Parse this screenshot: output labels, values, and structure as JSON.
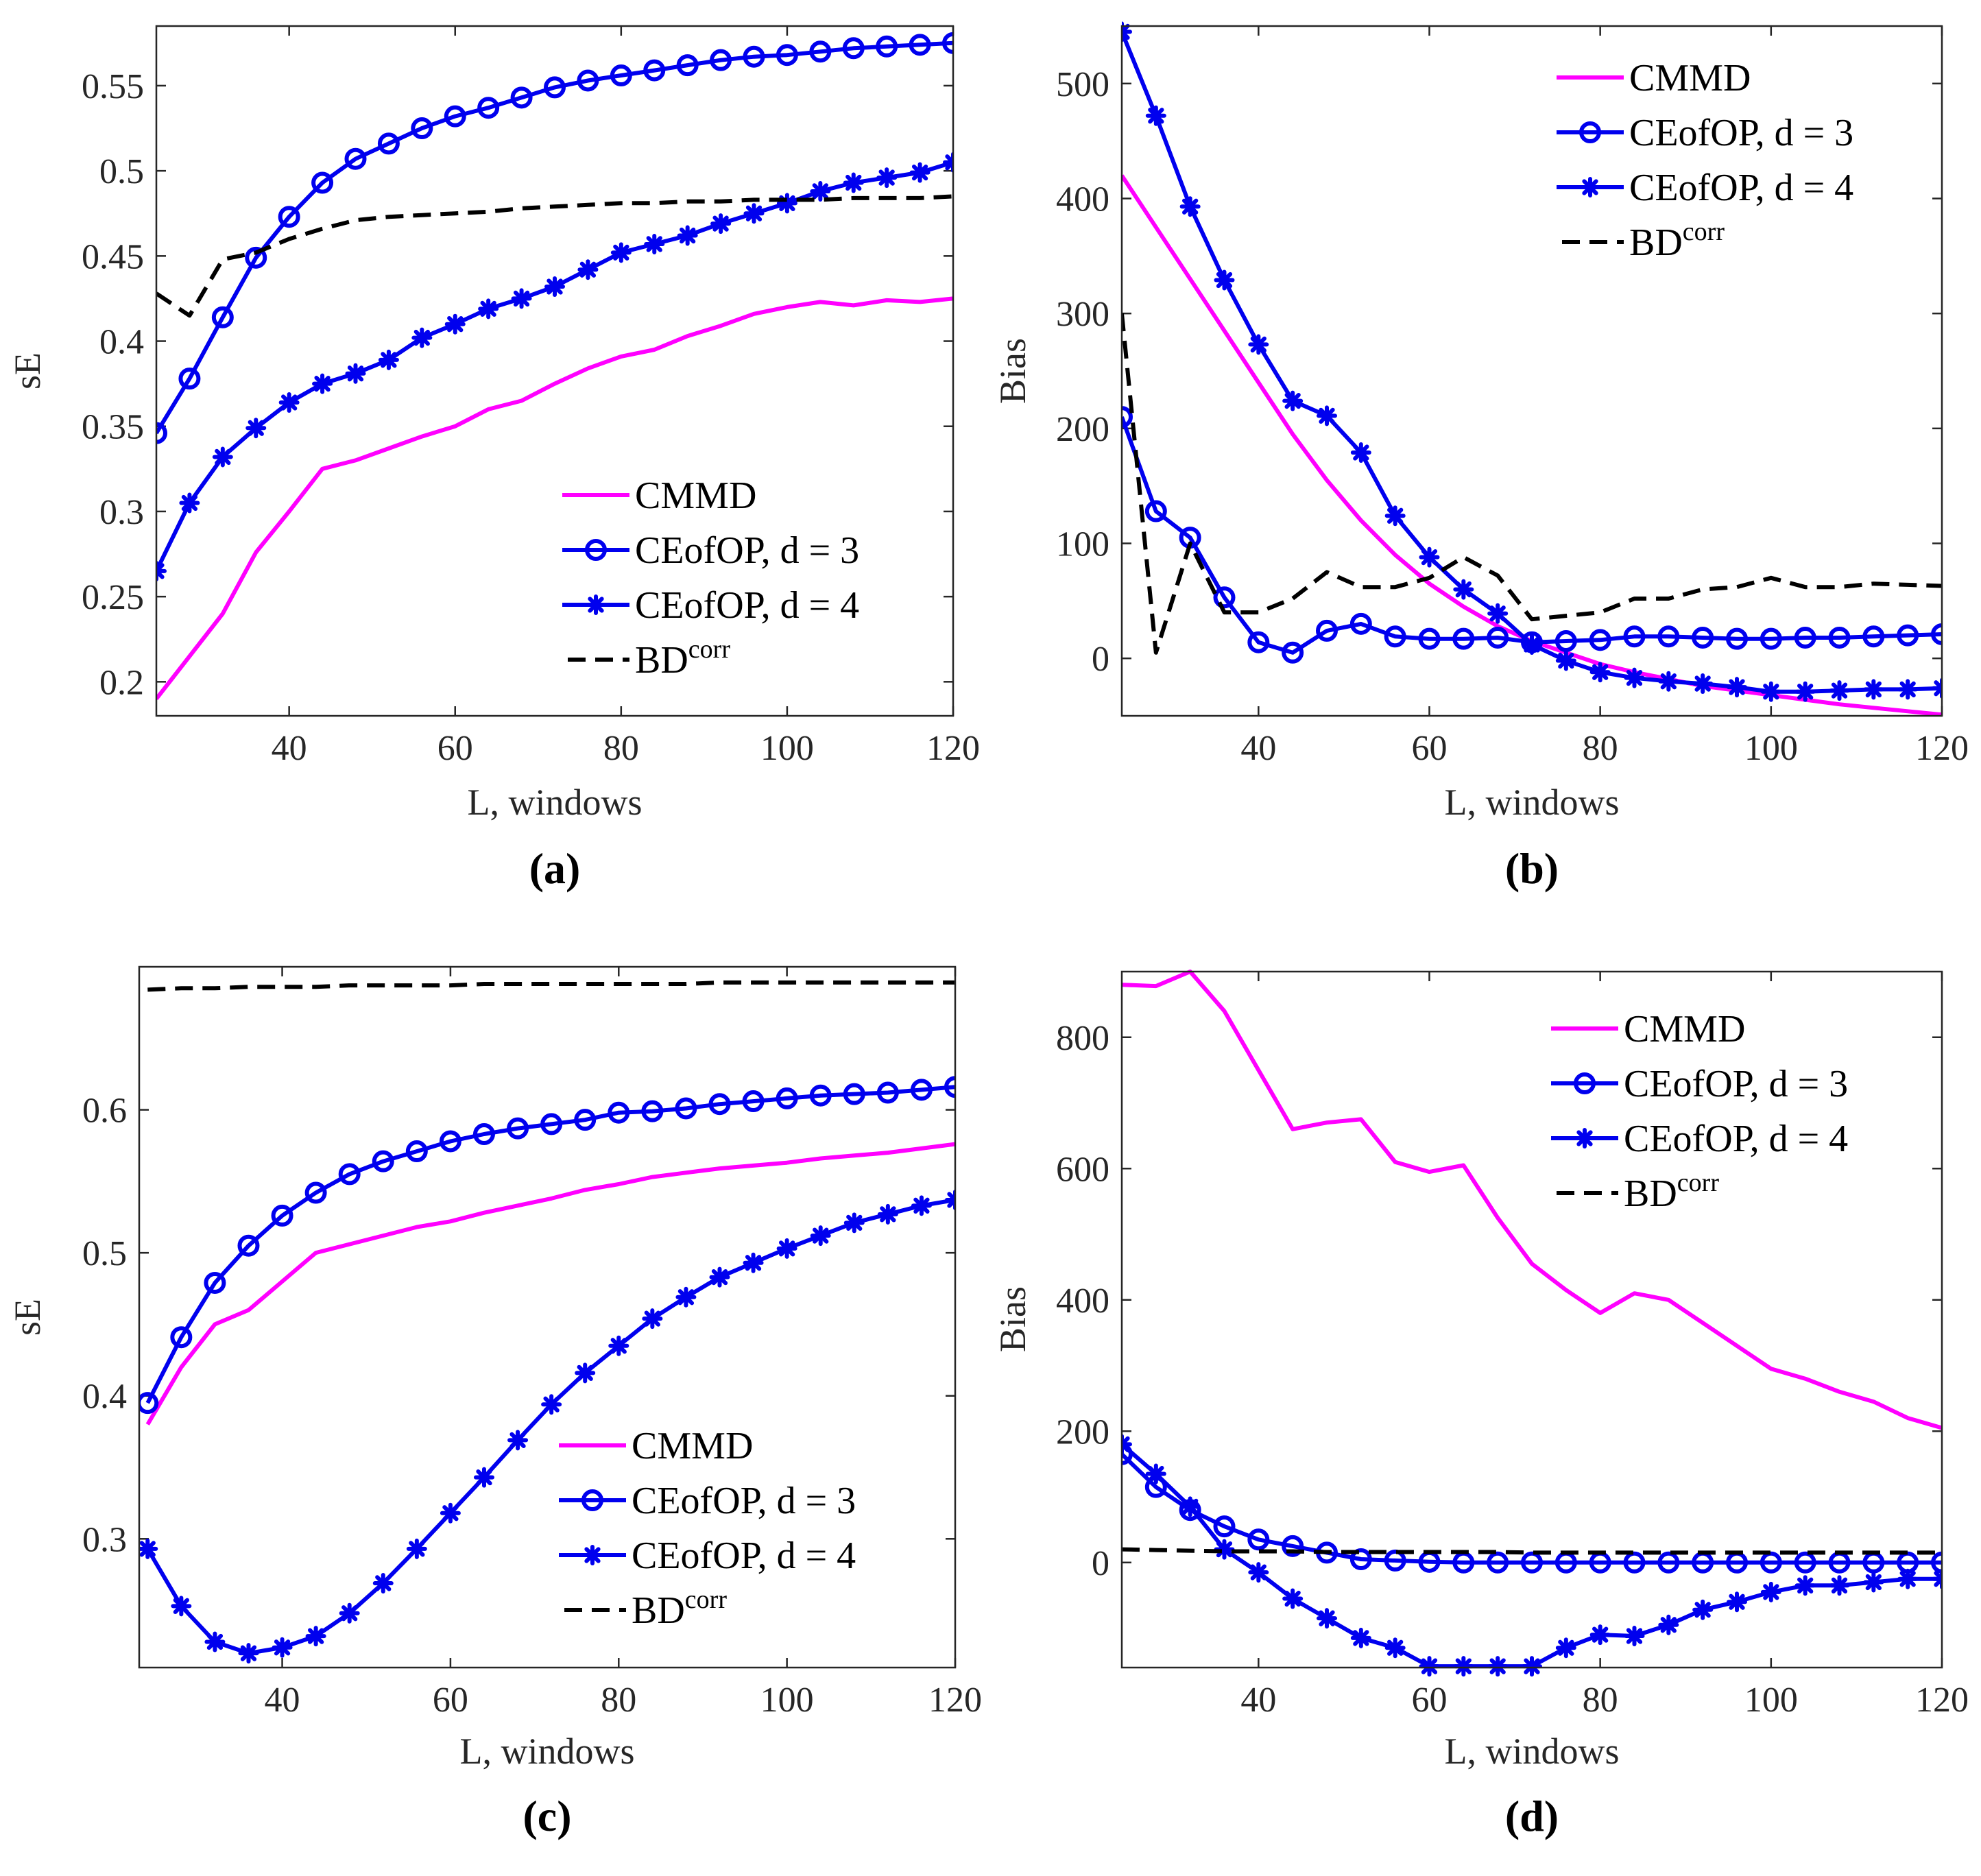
{
  "chart_data": [
    {
      "panel": "a",
      "caption": "(a)",
      "type": "line",
      "xlabel": "L, windows",
      "ylabel": "sE",
      "xlim": [
        24,
        120
      ],
      "ylim": [
        0.18,
        0.585
      ],
      "xticks": [
        40,
        60,
        80,
        100,
        120
      ],
      "xtick_labels": [
        "40",
        "60",
        "80",
        "100",
        "120"
      ],
      "yticks": [
        0.2,
        0.25,
        0.3,
        0.35,
        0.4,
        0.45,
        0.5,
        0.55
      ],
      "ytick_labels": [
        "0.2",
        "0.25",
        "0.3",
        "0.35",
        "0.4",
        "0.45",
        "0.5",
        "0.55"
      ],
      "legend_position": "bottom-right",
      "series": [
        {
          "name": "CMMD",
          "style": "cmmd",
          "x": [
            24,
            28,
            32,
            36,
            40,
            44,
            48,
            52,
            56,
            60,
            64,
            68,
            72,
            76,
            80,
            84,
            88,
            92,
            96,
            100,
            104,
            108,
            112,
            116,
            120
          ],
          "values": [
            0.19,
            0.215,
            0.24,
            0.276,
            0.3,
            0.325,
            0.33,
            0.337,
            0.344,
            0.35,
            0.36,
            0.365,
            0.375,
            0.384,
            0.391,
            0.395,
            0.403,
            0.409,
            0.416,
            0.42,
            0.423,
            0.421,
            0.424,
            0.423,
            0.425
          ]
        },
        {
          "name": "CEofOP, d = 3",
          "style": "d3",
          "x": [
            24,
            28,
            32,
            36,
            40,
            44,
            48,
            52,
            56,
            60,
            64,
            68,
            72,
            76,
            80,
            84,
            88,
            92,
            96,
            100,
            104,
            108,
            112,
            116,
            120
          ],
          "values": [
            0.346,
            0.378,
            0.414,
            0.449,
            0.473,
            0.493,
            0.507,
            0.516,
            0.525,
            0.532,
            0.537,
            0.543,
            0.549,
            0.553,
            0.556,
            0.559,
            0.562,
            0.565,
            0.567,
            0.568,
            0.57,
            0.572,
            0.573,
            0.574,
            0.575
          ]
        },
        {
          "name": "CEofOP, d = 4",
          "style": "d4",
          "x": [
            24,
            28,
            32,
            36,
            40,
            44,
            48,
            52,
            56,
            60,
            64,
            68,
            72,
            76,
            80,
            84,
            88,
            92,
            96,
            100,
            104,
            108,
            112,
            116,
            120
          ],
          "values": [
            0.265,
            0.305,
            0.332,
            0.349,
            0.364,
            0.375,
            0.381,
            0.389,
            0.402,
            0.41,
            0.419,
            0.425,
            0.432,
            0.442,
            0.452,
            0.457,
            0.462,
            0.469,
            0.475,
            0.481,
            0.488,
            0.493,
            0.496,
            0.499,
            0.505
          ]
        },
        {
          "name": "BD",
          "superscript": "corr",
          "style": "bd",
          "x": [
            24,
            28,
            32,
            36,
            40,
            44,
            48,
            52,
            56,
            60,
            64,
            68,
            72,
            76,
            80,
            84,
            88,
            92,
            96,
            100,
            104,
            108,
            112,
            116,
            120
          ],
          "values": [
            0.428,
            0.415,
            0.448,
            0.452,
            0.46,
            0.466,
            0.471,
            0.473,
            0.474,
            0.475,
            0.476,
            0.478,
            0.479,
            0.48,
            0.481,
            0.481,
            0.482,
            0.482,
            0.483,
            0.483,
            0.483,
            0.484,
            0.484,
            0.484,
            0.485
          ]
        }
      ]
    },
    {
      "panel": "b",
      "caption": "(b)",
      "type": "line",
      "xlabel": "L, windows",
      "ylabel": "Bias",
      "xlim": [
        24,
        120
      ],
      "ylim": [
        -50,
        550
      ],
      "xticks": [
        40,
        60,
        80,
        100,
        120
      ],
      "xtick_labels": [
        "40",
        "60",
        "80",
        "100",
        "120"
      ],
      "yticks": [
        0,
        100,
        200,
        300,
        400,
        500
      ],
      "ytick_labels": [
        "0",
        "100",
        "200",
        "300",
        "400",
        "500"
      ],
      "legend_position": "top-right",
      "series": [
        {
          "name": "CMMD",
          "style": "cmmd",
          "x": [
            24,
            28,
            32,
            36,
            40,
            44,
            48,
            52,
            56,
            60,
            64,
            68,
            72,
            76,
            80,
            84,
            88,
            92,
            96,
            100,
            104,
            108,
            112,
            116,
            120
          ],
          "values": [
            420,
            375,
            330,
            285,
            240,
            195,
            155,
            120,
            90,
            65,
            45,
            28,
            15,
            5,
            -5,
            -12,
            -18,
            -24,
            -28,
            -32,
            -36,
            -40,
            -43,
            -46,
            -49
          ]
        },
        {
          "name": "CEofOP, d = 3",
          "style": "d3",
          "x": [
            24,
            28,
            32,
            36,
            40,
            44,
            48,
            52,
            56,
            60,
            64,
            68,
            72,
            76,
            80,
            84,
            88,
            92,
            96,
            100,
            104,
            108,
            112,
            116,
            120
          ],
          "values": [
            210,
            128,
            105,
            53,
            14,
            5,
            24,
            30,
            19,
            17,
            17,
            18,
            14,
            15,
            16,
            19,
            19,
            18,
            17,
            17,
            18,
            18,
            19,
            20,
            21
          ]
        },
        {
          "name": "CEofOP, d = 4",
          "style": "d4",
          "x": [
            24,
            28,
            32,
            36,
            40,
            44,
            48,
            52,
            56,
            60,
            64,
            68,
            72,
            76,
            80,
            84,
            88,
            92,
            96,
            100,
            104,
            108,
            112,
            116,
            120
          ],
          "values": [
            545,
            472,
            393,
            329,
            273,
            224,
            211,
            179,
            124,
            88,
            60,
            39,
            12,
            -2,
            -12,
            -17,
            -20,
            -22,
            -25,
            -29,
            -29,
            -28,
            -27,
            -27,
            -26
          ]
        },
        {
          "name": "BD",
          "superscript": "corr",
          "style": "bd",
          "x": [
            24,
            28,
            32,
            36,
            40,
            44,
            48,
            52,
            56,
            60,
            64,
            68,
            72,
            76,
            80,
            84,
            88,
            92,
            96,
            100,
            104,
            108,
            112,
            116,
            120
          ],
          "values": [
            300,
            5,
            100,
            40,
            40,
            52,
            75,
            62,
            62,
            70,
            88,
            72,
            34,
            37,
            40,
            52,
            52,
            60,
            62,
            70,
            62,
            62,
            65,
            64,
            63
          ]
        }
      ]
    },
    {
      "panel": "c",
      "caption": "(c)",
      "type": "line",
      "xlabel": "L, windows",
      "ylabel": "sE",
      "xlim": [
        23,
        120
      ],
      "ylim": [
        0.21,
        0.7
      ],
      "xticks": [
        40,
        60,
        80,
        100,
        120
      ],
      "xtick_labels": [
        "40",
        "60",
        "80",
        "100",
        "120"
      ],
      "yticks": [
        0.3,
        0.4,
        0.5,
        0.6
      ],
      "ytick_labels": [
        "0.3",
        "0.4",
        "0.5",
        "0.6"
      ],
      "legend_position": "bottom-right",
      "series": [
        {
          "name": "CMMD",
          "style": "cmmd",
          "x": [
            24,
            28,
            32,
            36,
            40,
            44,
            48,
            52,
            56,
            60,
            64,
            68,
            72,
            76,
            80,
            84,
            88,
            92,
            96,
            100,
            104,
            108,
            112,
            116,
            120
          ],
          "values": [
            0.38,
            0.42,
            0.45,
            0.46,
            0.48,
            0.5,
            0.506,
            0.512,
            0.518,
            0.522,
            0.528,
            0.533,
            0.538,
            0.544,
            0.548,
            0.553,
            0.556,
            0.559,
            0.561,
            0.563,
            0.566,
            0.568,
            0.57,
            0.573,
            0.576
          ]
        },
        {
          "name": "CEofOP, d = 3",
          "style": "d3",
          "x": [
            24,
            28,
            32,
            36,
            40,
            44,
            48,
            52,
            56,
            60,
            64,
            68,
            72,
            76,
            80,
            84,
            88,
            92,
            96,
            100,
            104,
            108,
            112,
            116,
            120
          ],
          "values": [
            0.395,
            0.441,
            0.479,
            0.505,
            0.526,
            0.542,
            0.555,
            0.564,
            0.571,
            0.578,
            0.583,
            0.587,
            0.59,
            0.593,
            0.598,
            0.599,
            0.601,
            0.604,
            0.606,
            0.608,
            0.61,
            0.611,
            0.612,
            0.614,
            0.616
          ]
        },
        {
          "name": "CEofOP, d = 4",
          "style": "d4",
          "x": [
            24,
            28,
            32,
            36,
            40,
            44,
            48,
            52,
            56,
            60,
            64,
            68,
            72,
            76,
            80,
            84,
            88,
            92,
            96,
            100,
            104,
            108,
            112,
            116,
            120
          ],
          "values": [
            0.293,
            0.253,
            0.228,
            0.22,
            0.224,
            0.232,
            0.248,
            0.269,
            0.293,
            0.318,
            0.343,
            0.369,
            0.394,
            0.416,
            0.435,
            0.454,
            0.469,
            0.483,
            0.493,
            0.503,
            0.512,
            0.521,
            0.527,
            0.533,
            0.537
          ]
        },
        {
          "name": "BD",
          "superscript": "corr",
          "style": "bd",
          "x": [
            24,
            28,
            32,
            36,
            40,
            44,
            48,
            52,
            56,
            60,
            64,
            68,
            72,
            76,
            80,
            84,
            88,
            92,
            96,
            100,
            104,
            108,
            112,
            116,
            120
          ],
          "values": [
            0.684,
            0.685,
            0.685,
            0.686,
            0.686,
            0.686,
            0.687,
            0.687,
            0.687,
            0.687,
            0.688,
            0.688,
            0.688,
            0.688,
            0.688,
            0.688,
            0.688,
            0.689,
            0.689,
            0.689,
            0.689,
            0.689,
            0.689,
            0.689,
            0.689
          ]
        }
      ]
    },
    {
      "panel": "d",
      "caption": "(d)",
      "type": "line",
      "xlabel": "L, windows",
      "ylabel": "Bias",
      "xlim": [
        24,
        120
      ],
      "ylim": [
        -160,
        900
      ],
      "xticks": [
        40,
        60,
        80,
        100,
        120
      ],
      "xtick_labels": [
        "40",
        "60",
        "80",
        "100",
        "120"
      ],
      "yticks": [
        0,
        200,
        400,
        600,
        800
      ],
      "ytick_labels": [
        "0",
        "200",
        "400",
        "600",
        "800"
      ],
      "legend_position": "top-right",
      "series": [
        {
          "name": "CMMD",
          "style": "cmmd",
          "x": [
            24,
            28,
            32,
            36,
            40,
            44,
            48,
            52,
            56,
            60,
            64,
            68,
            72,
            76,
            80,
            84,
            88,
            92,
            96,
            100,
            104,
            108,
            112,
            116,
            120
          ],
          "values": [
            880,
            878,
            900,
            840,
            750,
            660,
            670,
            675,
            610,
            595,
            605,
            525,
            455,
            415,
            380,
            410,
            400,
            365,
            330,
            295,
            280,
            260,
            245,
            220,
            205
          ]
        },
        {
          "name": "CEofOP, d = 3",
          "style": "d3",
          "x": [
            24,
            28,
            32,
            36,
            40,
            44,
            48,
            52,
            56,
            60,
            64,
            68,
            72,
            76,
            80,
            84,
            88,
            92,
            96,
            100,
            104,
            108,
            112,
            116,
            120
          ],
          "values": [
            165,
            115,
            80,
            55,
            35,
            25,
            15,
            5,
            3,
            1,
            0,
            0,
            0,
            0,
            0,
            0,
            0,
            0,
            0,
            0,
            0,
            0,
            0,
            0,
            0
          ]
        },
        {
          "name": "CEofOP, d = 4",
          "style": "d4",
          "x": [
            24,
            28,
            32,
            36,
            40,
            44,
            48,
            52,
            56,
            60,
            64,
            68,
            72,
            76,
            80,
            84,
            88,
            92,
            96,
            100,
            104,
            108,
            112,
            116,
            120
          ],
          "values": [
            180,
            135,
            85,
            20,
            -15,
            -55,
            -85,
            -115,
            -130,
            -158,
            -158,
            -158,
            -158,
            -130,
            -110,
            -112,
            -95,
            -72,
            -60,
            -45,
            -35,
            -35,
            -30,
            -25,
            -25
          ]
        },
        {
          "name": "BD",
          "superscript": "corr",
          "style": "bd",
          "x": [
            24,
            28,
            32,
            36,
            40,
            44,
            48,
            52,
            56,
            60,
            64,
            68,
            72,
            76,
            80,
            84,
            88,
            92,
            96,
            100,
            104,
            108,
            112,
            116,
            120
          ],
          "values": [
            20,
            19,
            18,
            17,
            17,
            17,
            16,
            16,
            16,
            16,
            16,
            16,
            15,
            15,
            15,
            15,
            15,
            15,
            15,
            15,
            15,
            15,
            15,
            15,
            15
          ]
        }
      ]
    }
  ],
  "colors": {
    "cmmd": "#ff00ff",
    "d3": "#0000ee",
    "d4": "#0000ee",
    "bd": "#000000",
    "axis": "#262626"
  }
}
